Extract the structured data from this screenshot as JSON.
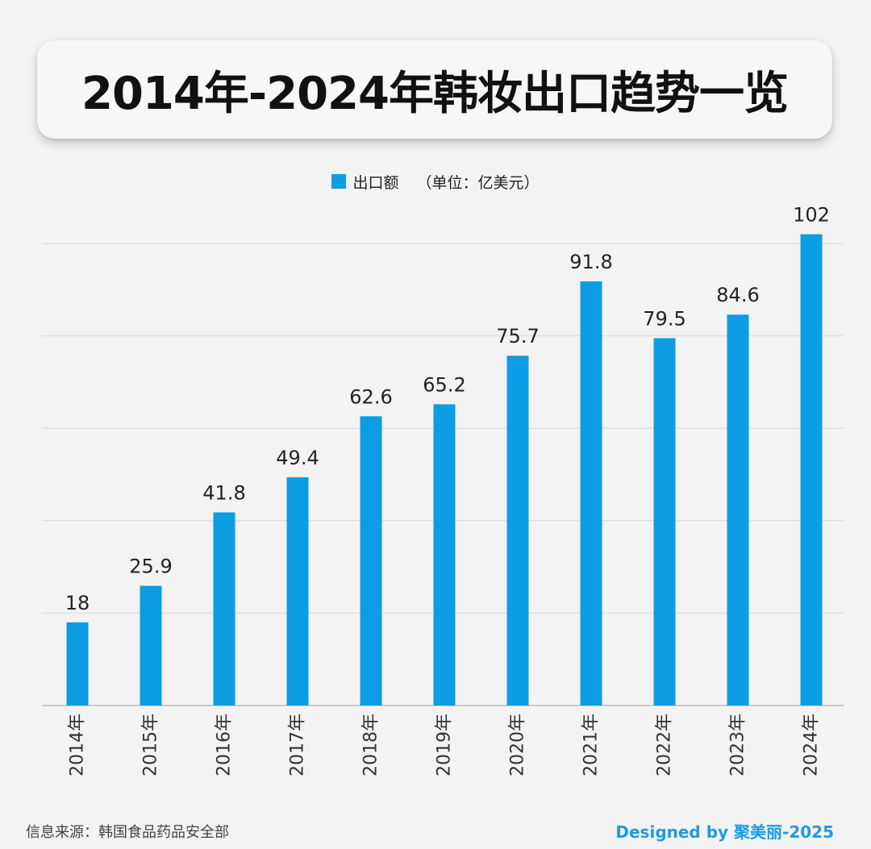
{
  "header": {
    "title": "2014年-2024年韩妆出口趋势一览"
  },
  "legend": {
    "series_label": "出口额",
    "unit_label": "（单位：亿美元）"
  },
  "colors": {
    "bar": "#0d9de3",
    "grid": "#d6d6d6",
    "credit": "#1e9be0"
  },
  "chart_data": {
    "type": "bar",
    "categories": [
      "2014年",
      "2015年",
      "2016年",
      "2017年",
      "2018年",
      "2019年",
      "2020年",
      "2021年",
      "2022年",
      "2023年",
      "2024年"
    ],
    "series": [
      {
        "name": "出口额",
        "values": [
          18,
          25.9,
          41.8,
          49.4,
          62.6,
          65.2,
          75.7,
          91.8,
          79.5,
          84.6,
          102
        ]
      }
    ],
    "value_labels": [
      "18",
      "25.9",
      "41.8",
      "49.4",
      "62.6",
      "65.2",
      "75.7",
      "91.8",
      "79.5",
      "84.6",
      "102"
    ],
    "ylim": [
      0,
      100
    ],
    "grid": true,
    "legend_position": "top-center"
  },
  "footer": {
    "source": "信息来源：韩国食品药品安全部",
    "credit": "Designed by 聚美丽-2025"
  }
}
